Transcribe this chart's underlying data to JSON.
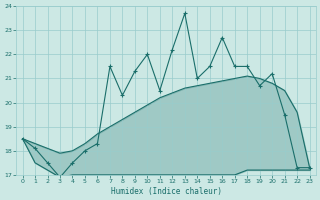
{
  "xlabel": "Humidex (Indice chaleur)",
  "xlim": [
    -0.5,
    23.5
  ],
  "ylim": [
    17,
    24
  ],
  "yticks": [
    17,
    18,
    19,
    20,
    21,
    22,
    23,
    24
  ],
  "xticks": [
    0,
    1,
    2,
    3,
    4,
    5,
    6,
    7,
    8,
    9,
    10,
    11,
    12,
    13,
    14,
    15,
    16,
    17,
    18,
    19,
    20,
    21,
    22,
    23
  ],
  "bg_color": "#cce8e4",
  "grid_color": "#99cccc",
  "line_color": "#1a6e6a",
  "main_y": [
    18.5,
    18.1,
    17.5,
    16.9,
    17.5,
    18.0,
    18.3,
    21.5,
    20.3,
    21.3,
    22.0,
    20.5,
    22.2,
    23.7,
    21.0,
    21.5,
    22.7,
    21.5,
    21.5,
    20.7,
    21.2,
    19.5,
    17.3,
    17.3
  ],
  "upper_y": [
    18.5,
    18.3,
    18.1,
    17.9,
    18.0,
    18.3,
    18.7,
    19.0,
    19.3,
    19.6,
    19.9,
    20.2,
    20.4,
    20.6,
    20.7,
    20.8,
    20.9,
    21.0,
    21.1,
    21.0,
    20.8,
    20.5,
    19.6,
    17.3
  ],
  "lower_y": [
    18.5,
    17.5,
    17.2,
    16.9,
    17.0,
    17.0,
    17.0,
    17.0,
    17.0,
    17.0,
    17.0,
    17.0,
    17.0,
    17.0,
    17.0,
    17.0,
    17.0,
    17.0,
    17.2,
    17.2,
    17.2,
    17.2,
    17.2,
    17.2
  ],
  "fill_alpha": 0.25
}
